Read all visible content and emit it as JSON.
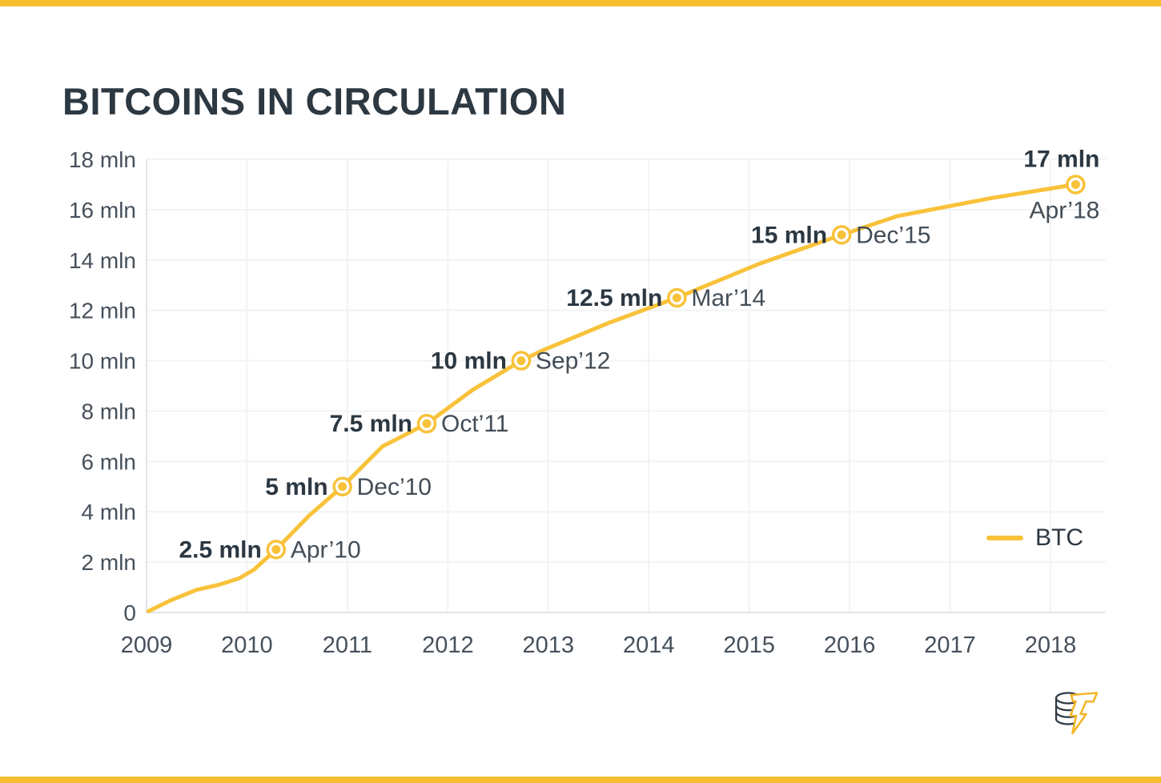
{
  "header": {
    "title": "BITCOINS IN CIRCULATION"
  },
  "theme": {
    "accent": "#F8C23A",
    "bar_color": "#F6BF2D",
    "title_color": "#2C3842",
    "tick_color": "#46505B",
    "value_label_color": "#2B3741",
    "date_label_color": "#424D57",
    "grid_color": "#F2F3F5",
    "axis_color": "#E1E5E9",
    "background": "#FFFFFF"
  },
  "legend": {
    "label": "BTC"
  },
  "logo": {
    "name": "coin-lightning-logo"
  },
  "chart_data": {
    "type": "line",
    "title": "BITCOINS IN CIRCULATION",
    "xlabel": "",
    "ylabel": "",
    "xlim": [
      2009,
      2018.55
    ],
    "ylim": [
      0,
      18
    ],
    "grid": true,
    "legend_position": "right-middle",
    "x_ticks": [
      {
        "value": 2009,
        "label": "2009"
      },
      {
        "value": 2010,
        "label": "2010"
      },
      {
        "value": 2011,
        "label": "2011"
      },
      {
        "value": 2012,
        "label": "2012"
      },
      {
        "value": 2013,
        "label": "2013"
      },
      {
        "value": 2014,
        "label": "2014"
      },
      {
        "value": 2015,
        "label": "2015"
      },
      {
        "value": 2016,
        "label": "2016"
      },
      {
        "value": 2017,
        "label": "2017"
      },
      {
        "value": 2018,
        "label": "2018"
      }
    ],
    "y_ticks": [
      {
        "value": 0,
        "label": "0"
      },
      {
        "value": 2,
        "label": "2 mln"
      },
      {
        "value": 4,
        "label": "4 mln"
      },
      {
        "value": 6,
        "label": "6 mln"
      },
      {
        "value": 8,
        "label": "8 mln"
      },
      {
        "value": 10,
        "label": "10 mln"
      },
      {
        "value": 12,
        "label": "12 mln"
      },
      {
        "value": 14,
        "label": "14 mln"
      },
      {
        "value": 16,
        "label": "16 mln"
      },
      {
        "value": 18,
        "label": "18 mln"
      }
    ],
    "series": [
      {
        "name": "BTC",
        "color": "#F8C23A",
        "points": [
          [
            2009.02,
            0.05
          ],
          [
            2009.25,
            0.5
          ],
          [
            2009.5,
            0.9
          ],
          [
            2009.72,
            1.1
          ],
          [
            2009.92,
            1.35
          ],
          [
            2010.07,
            1.7
          ],
          [
            2010.29,
            2.5
          ],
          [
            2010.62,
            3.85
          ],
          [
            2010.95,
            5.0
          ],
          [
            2011.35,
            6.6
          ],
          [
            2011.79,
            7.5
          ],
          [
            2012.25,
            8.85
          ],
          [
            2012.73,
            10.0
          ],
          [
            2012.95,
            10.42
          ],
          [
            2013.6,
            11.5
          ],
          [
            2014.28,
            12.5
          ],
          [
            2015.1,
            13.85
          ],
          [
            2015.92,
            15.0
          ],
          [
            2016.48,
            15.75
          ],
          [
            2017.4,
            16.45
          ],
          [
            2018.25,
            17.0
          ]
        ]
      }
    ],
    "milestones": [
      {
        "value_label": "2.5 mln",
        "date_label": "Apr’10",
        "x": 2010.29,
        "y": 2.5,
        "layout": "side"
      },
      {
        "value_label": "5 mln",
        "date_label": "Dec’10",
        "x": 2010.95,
        "y": 5,
        "layout": "side"
      },
      {
        "value_label": "7.5 mln",
        "date_label": "Oct’11",
        "x": 2011.79,
        "y": 7.5,
        "layout": "side"
      },
      {
        "value_label": "10 mln",
        "date_label": "Sep’12",
        "x": 2012.73,
        "y": 10,
        "layout": "side"
      },
      {
        "value_label": "12.5 mln",
        "date_label": "Mar’14",
        "x": 2014.28,
        "y": 12.5,
        "layout": "side"
      },
      {
        "value_label": "15 mln",
        "date_label": "Dec’15",
        "x": 2015.92,
        "y": 15,
        "layout": "side"
      },
      {
        "value_label": "17 mln",
        "date_label": "Apr’18",
        "x": 2018.25,
        "y": 17,
        "layout": "stacked"
      }
    ]
  }
}
